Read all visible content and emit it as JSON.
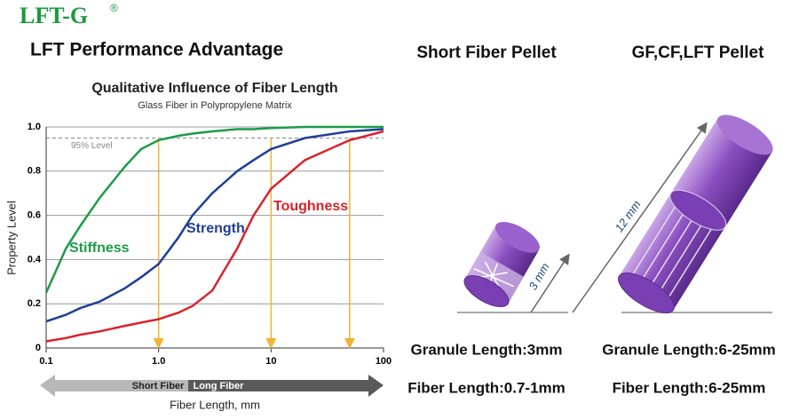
{
  "header": {
    "logo": "LFT-G",
    "registered": "®",
    "title": "LFT Performance Advantage"
  },
  "chart_data": {
    "type": "line",
    "title": "Qualitative Influence of Fiber Length",
    "subtitle": "Glass Fiber in Polypropylene Matrix",
    "xlabel": "Fiber Length, mm",
    "ylabel": "Property Level",
    "xscale": "log",
    "grid": true,
    "x": [
      0.1,
      0.15,
      0.2,
      0.3,
      0.5,
      0.7,
      1,
      1.5,
      2,
      3,
      5,
      7,
      10,
      20,
      50,
      100
    ],
    "xlim": [
      0.1,
      100
    ],
    "ylim": [
      0,
      1
    ],
    "xticks": [
      0.1,
      {
        "value": 1,
        "label": "1.0"
      },
      10,
      100
    ],
    "yticks": [
      0,
      0.2,
      0.4,
      0.6,
      0.8,
      {
        "value": 1,
        "label": "1.0"
      }
    ],
    "series": [
      {
        "name": "Stiffness",
        "color": "#1e9a48",
        "values": [
          0.25,
          0.45,
          0.55,
          0.68,
          0.82,
          0.9,
          0.94,
          0.96,
          0.97,
          0.98,
          0.99,
          0.99,
          0.995,
          1,
          1,
          1
        ]
      },
      {
        "name": "Strength",
        "color": "#1f3f98",
        "values": [
          0.12,
          0.15,
          0.18,
          0.21,
          0.27,
          0.32,
          0.38,
          0.5,
          0.6,
          0.7,
          0.8,
          0.85,
          0.9,
          0.95,
          0.98,
          0.99
        ]
      },
      {
        "name": "Toughness",
        "color": "#d8232a",
        "values": [
          0.03,
          0.045,
          0.06,
          0.075,
          0.1,
          0.115,
          0.13,
          0.16,
          0.19,
          0.26,
          0.45,
          0.6,
          0.72,
          0.85,
          0.94,
          0.98
        ]
      }
    ],
    "reference_line": {
      "value": 0.95,
      "label": "95% Level"
    },
    "arrows": {
      "x": [
        1,
        10,
        50
      ],
      "color": "#f2b233"
    },
    "range_bar": {
      "labels": [
        "Short Fiber",
        "Long Fiber"
      ]
    }
  },
  "pellets": [
    {
      "title": "Short Fiber Pellet",
      "dimension": "3 mm",
      "granule_length": "Granule Length:3mm",
      "fiber_length": "Fiber Length:0.7-1mm"
    },
    {
      "title": "GF,CF,LFT Pellet",
      "dimension": "12 mm",
      "granule_length": "Granule Length:6-25mm",
      "fiber_length": "Fiber Length:6-25mm"
    }
  ]
}
